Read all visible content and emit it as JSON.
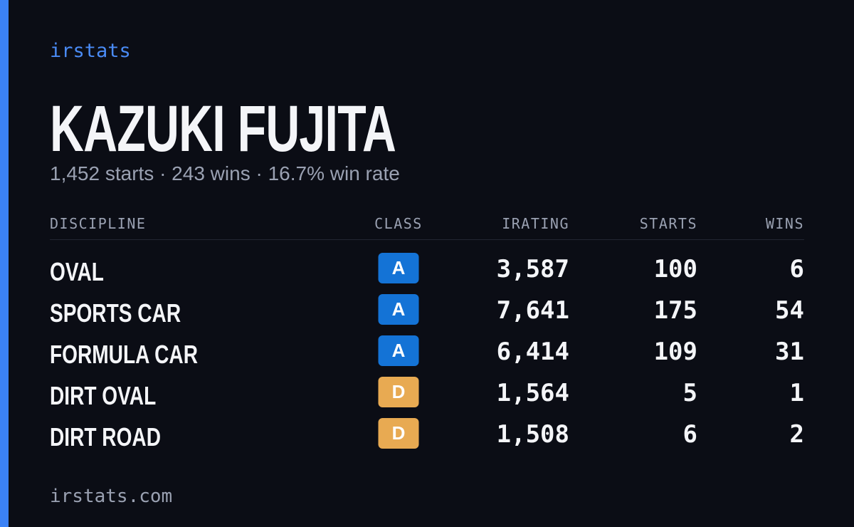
{
  "brand": "irstats",
  "player": {
    "name": "KAZUKI FUJITA",
    "summary": "1,452 starts · 243 wins · 16.7% win rate"
  },
  "table": {
    "headers": [
      "DISCIPLINE",
      "CLASS",
      "IRATING",
      "STARTS",
      "WINS"
    ],
    "rows": [
      [
        "OVAL",
        "A",
        "3,587",
        "100",
        "6"
      ],
      [
        "SPORTS CAR",
        "A",
        "7,641",
        "175",
        "54"
      ],
      [
        "FORMULA CAR",
        "A",
        "6,414",
        "109",
        "31"
      ],
      [
        "DIRT OVAL",
        "D",
        "1,564",
        "5",
        "1"
      ],
      [
        "DIRT ROAD",
        "D",
        "1,508",
        "6",
        "2"
      ]
    ],
    "class_colors": {
      "A": "#1473d6",
      "D": "#e8aa52"
    }
  },
  "footer": "irstats.com"
}
